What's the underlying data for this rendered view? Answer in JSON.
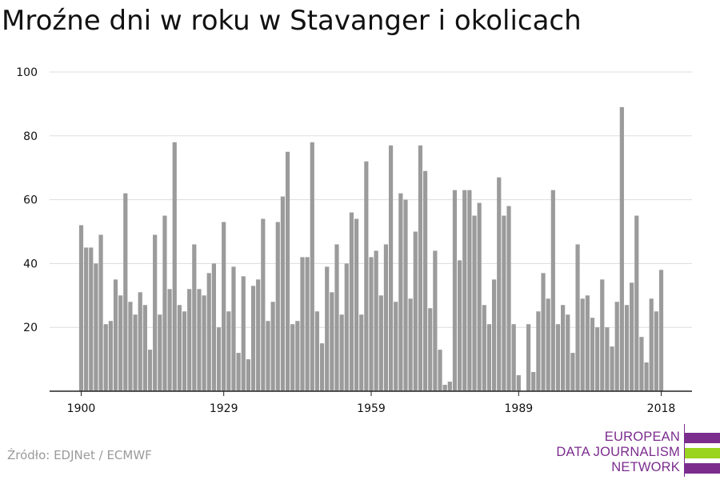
{
  "title": "Mroźne dni w roku w Stavanger i okolicach",
  "source": "Źródło: EDJNet / ECMWF",
  "logo": {
    "lines": [
      "EUROPEAN",
      "DATA JOURNALISM",
      "NETWORK"
    ],
    "text_color": "#7b2d8e",
    "bar_colors": [
      "#7b2d8e",
      "#9bd41e",
      "#7b2d8e"
    ]
  },
  "colors": {
    "bar": "#9b9b9b",
    "grid": "#dddddd",
    "axis": "#222222",
    "text": "#111111"
  },
  "chart_data": {
    "type": "bar",
    "title": "Mroźne dni w roku w Stavanger i okolicach",
    "xlabel": "",
    "ylabel": "",
    "ylim": [
      0,
      100
    ],
    "yticks": [
      20,
      40,
      60,
      80,
      100
    ],
    "xticks": [
      1900,
      1929,
      1959,
      1989,
      2018
    ],
    "grid": true,
    "categories": [
      1900,
      1901,
      1902,
      1903,
      1904,
      1905,
      1906,
      1907,
      1908,
      1909,
      1910,
      1911,
      1912,
      1913,
      1914,
      1915,
      1916,
      1917,
      1918,
      1919,
      1920,
      1921,
      1922,
      1923,
      1924,
      1925,
      1926,
      1927,
      1928,
      1929,
      1930,
      1931,
      1932,
      1933,
      1934,
      1935,
      1936,
      1937,
      1938,
      1939,
      1940,
      1941,
      1942,
      1943,
      1944,
      1945,
      1946,
      1947,
      1948,
      1949,
      1950,
      1951,
      1952,
      1953,
      1954,
      1955,
      1956,
      1957,
      1958,
      1959,
      1960,
      1961,
      1962,
      1963,
      1964,
      1965,
      1966,
      1967,
      1968,
      1969,
      1970,
      1971,
      1972,
      1973,
      1974,
      1975,
      1976,
      1977,
      1978,
      1979,
      1980,
      1981,
      1982,
      1983,
      1984,
      1985,
      1986,
      1987,
      1988,
      1989,
      1990,
      1991,
      1992,
      1993,
      1994,
      1995,
      1996,
      1997,
      1998,
      1999,
      2000,
      2001,
      2002,
      2003,
      2004,
      2005,
      2006,
      2007,
      2008,
      2009,
      2010,
      2011,
      2012,
      2013,
      2014,
      2015,
      2016,
      2017,
      2018
    ],
    "values": [
      52,
      45,
      45,
      40,
      49,
      21,
      22,
      35,
      30,
      62,
      28,
      24,
      31,
      27,
      13,
      49,
      24,
      55,
      32,
      78,
      27,
      25,
      32,
      46,
      32,
      30,
      37,
      40,
      20,
      53,
      25,
      39,
      12,
      36,
      10,
      33,
      35,
      54,
      22,
      28,
      53,
      61,
      75,
      21,
      22,
      42,
      42,
      78,
      25,
      15,
      39,
      31,
      46,
      24,
      40,
      56,
      54,
      24,
      72,
      42,
      44,
      30,
      46,
      77,
      28,
      62,
      60,
      29,
      50,
      77,
      69,
      26,
      44,
      13,
      2,
      3,
      63,
      41,
      63,
      63,
      55,
      59,
      27,
      21,
      35,
      67,
      55,
      58,
      21,
      5,
      0,
      21,
      6,
      25,
      37,
      29,
      63,
      21,
      27,
      24,
      12,
      46,
      29,
      30,
      23,
      20,
      35,
      20,
      14,
      28,
      89,
      27,
      34,
      55,
      17,
      9,
      29,
      25,
      38
    ]
  }
}
